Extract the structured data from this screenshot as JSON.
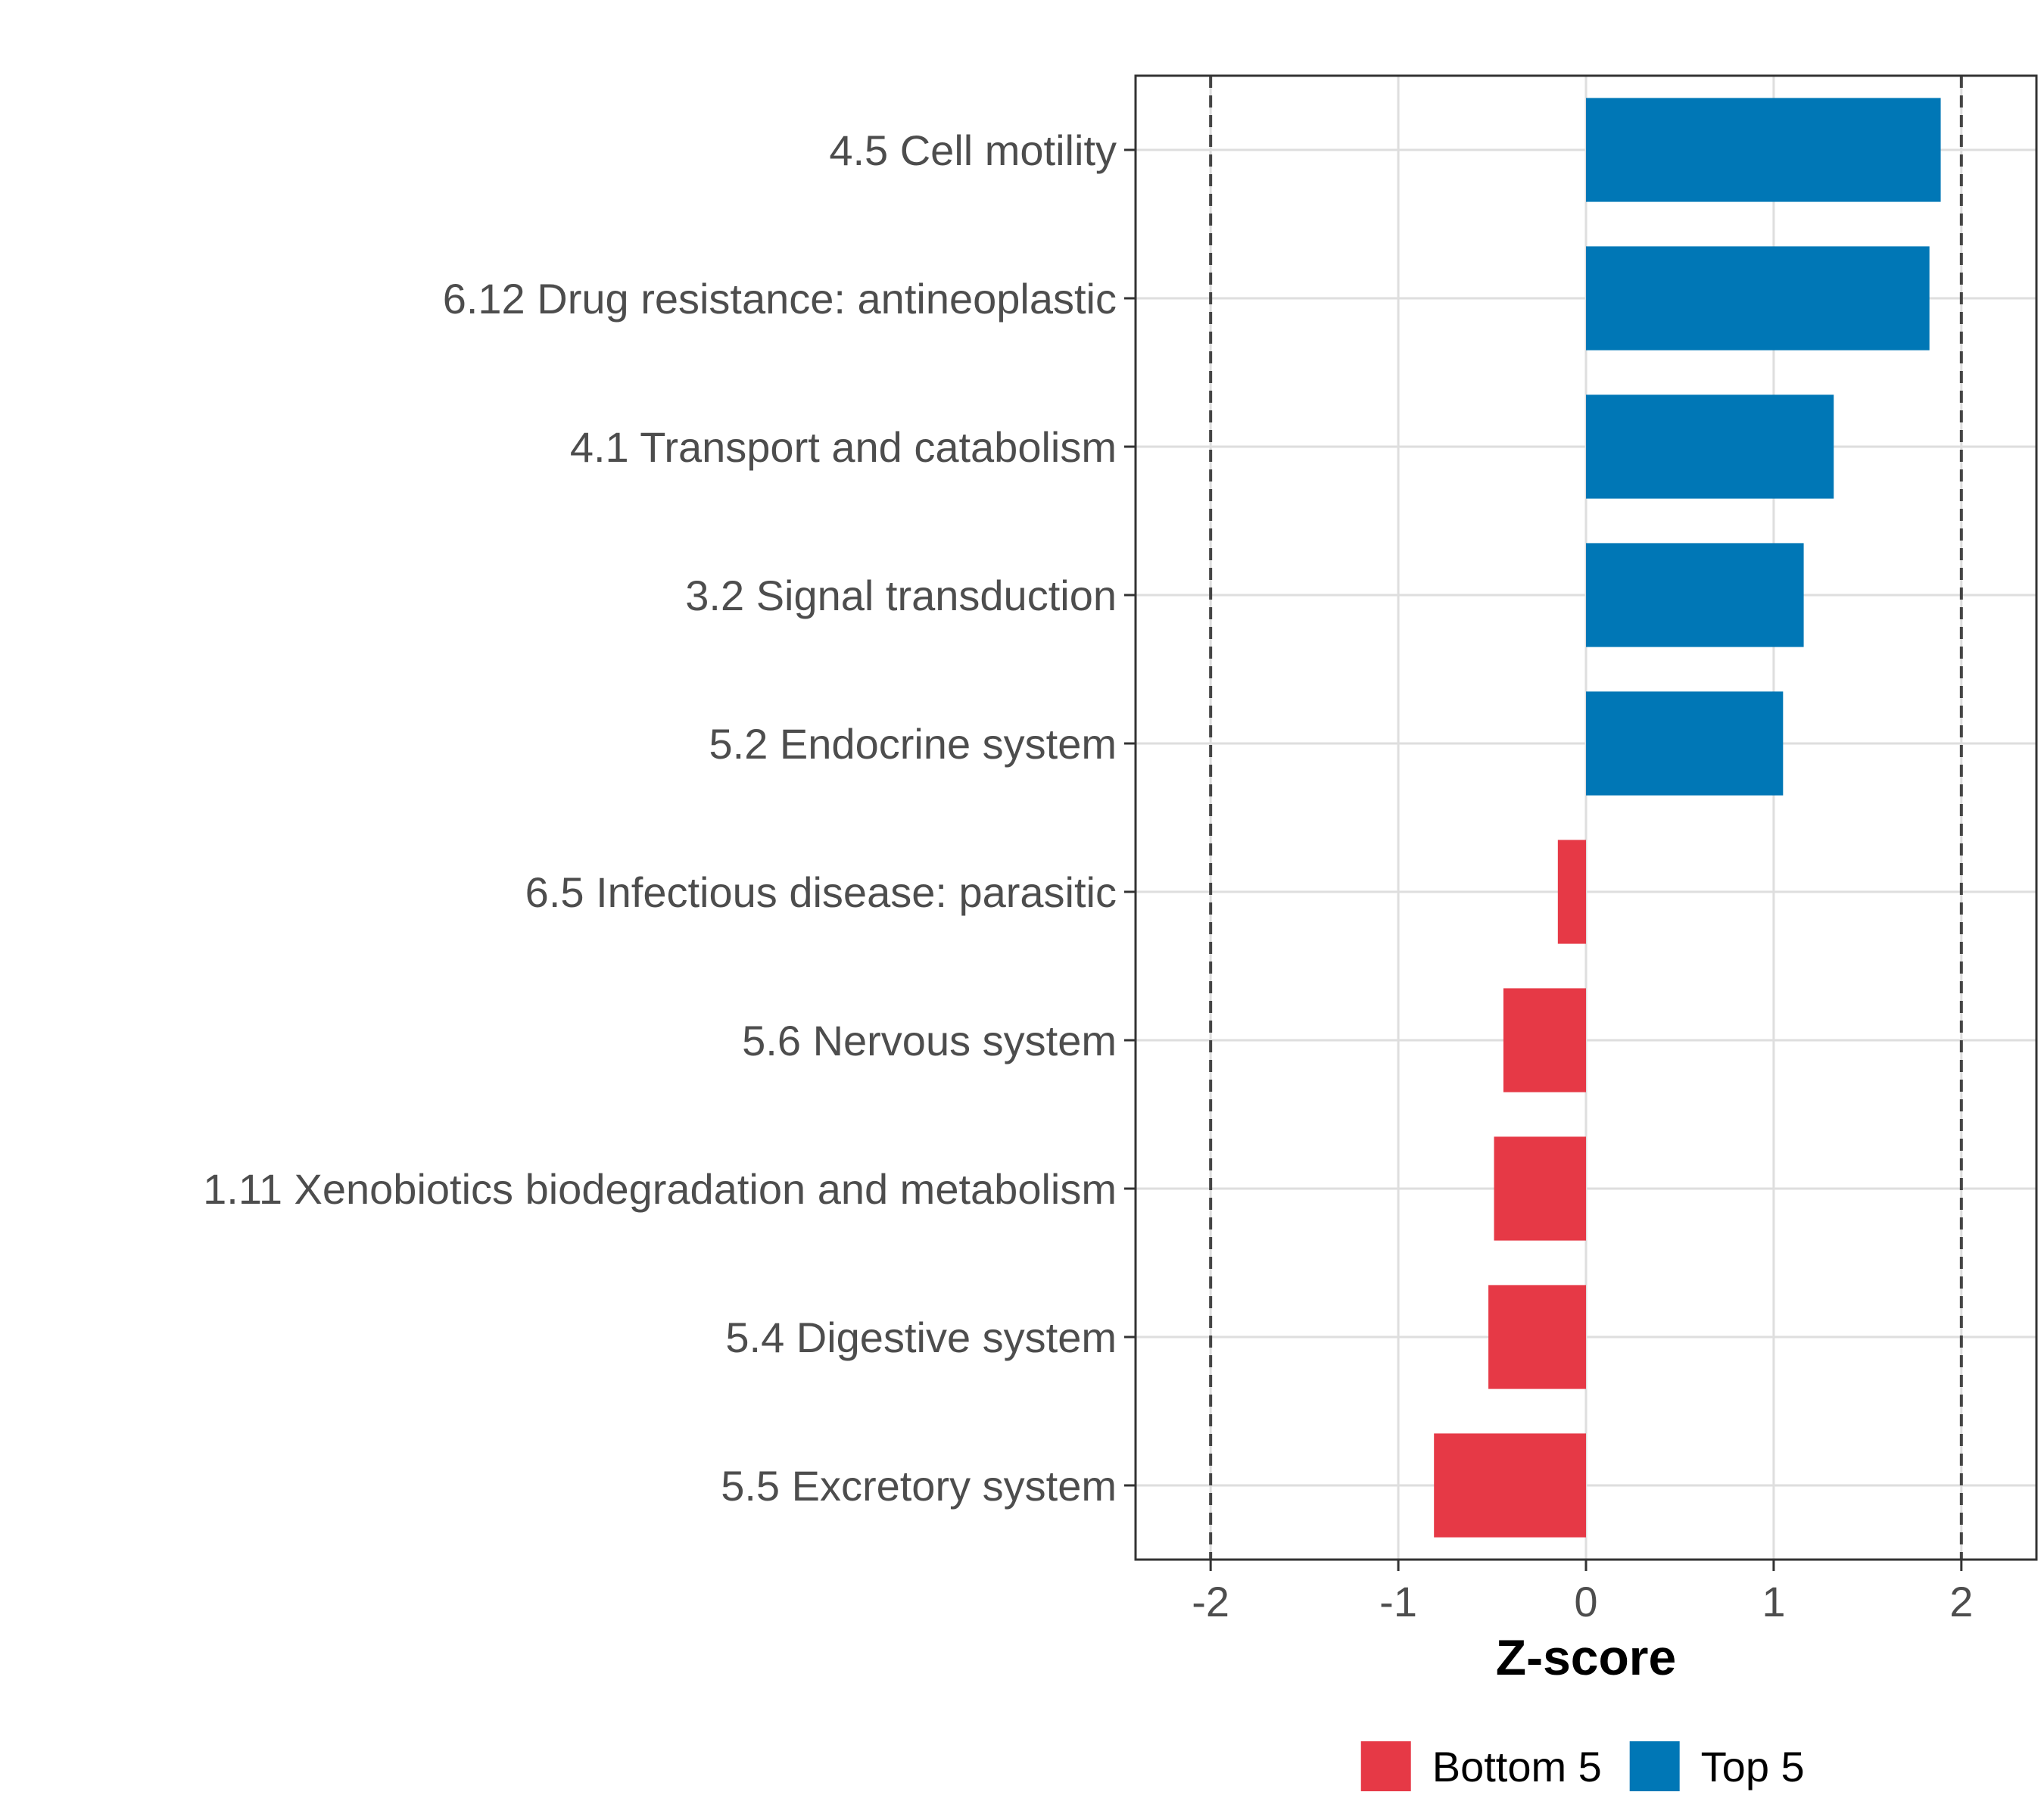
{
  "chart_data": {
    "type": "bar",
    "orientation": "horizontal",
    "categories": [
      "4.5 Cell motility",
      "6.12 Drug resistance: antineoplastic",
      "4.1 Transport and catabolism",
      "3.2 Signal transduction",
      "5.2 Endocrine system",
      "6.5 Infectious disease: parasitic",
      "5.6 Nervous system",
      "1.11 Xenobiotics biodegradation and metabolism",
      "5.4 Digestive system",
      "5.5 Excretory system"
    ],
    "values": [
      1.89,
      1.83,
      1.32,
      1.16,
      1.05,
      -0.15,
      -0.44,
      -0.49,
      -0.52,
      -0.81
    ],
    "groups": [
      "Top 5",
      "Top 5",
      "Top 5",
      "Top 5",
      "Top 5",
      "Bottom 5",
      "Bottom 5",
      "Bottom 5",
      "Bottom 5",
      "Bottom 5"
    ],
    "xlabel": "Z-score",
    "ylabel": "",
    "xlim": [
      -2.4,
      2.4
    ],
    "x_ticks": [
      -2,
      -1,
      0,
      1,
      2
    ],
    "x_tick_labels": [
      "-2",
      "-1",
      "0",
      "1",
      "2"
    ],
    "reference_lines": [
      -2,
      2
    ],
    "grid": true,
    "legend": {
      "position": "bottom",
      "entries": [
        {
          "label": "Bottom 5",
          "color": "#E63946"
        },
        {
          "label": "Top 5",
          "color": "#0077B6"
        }
      ]
    }
  }
}
